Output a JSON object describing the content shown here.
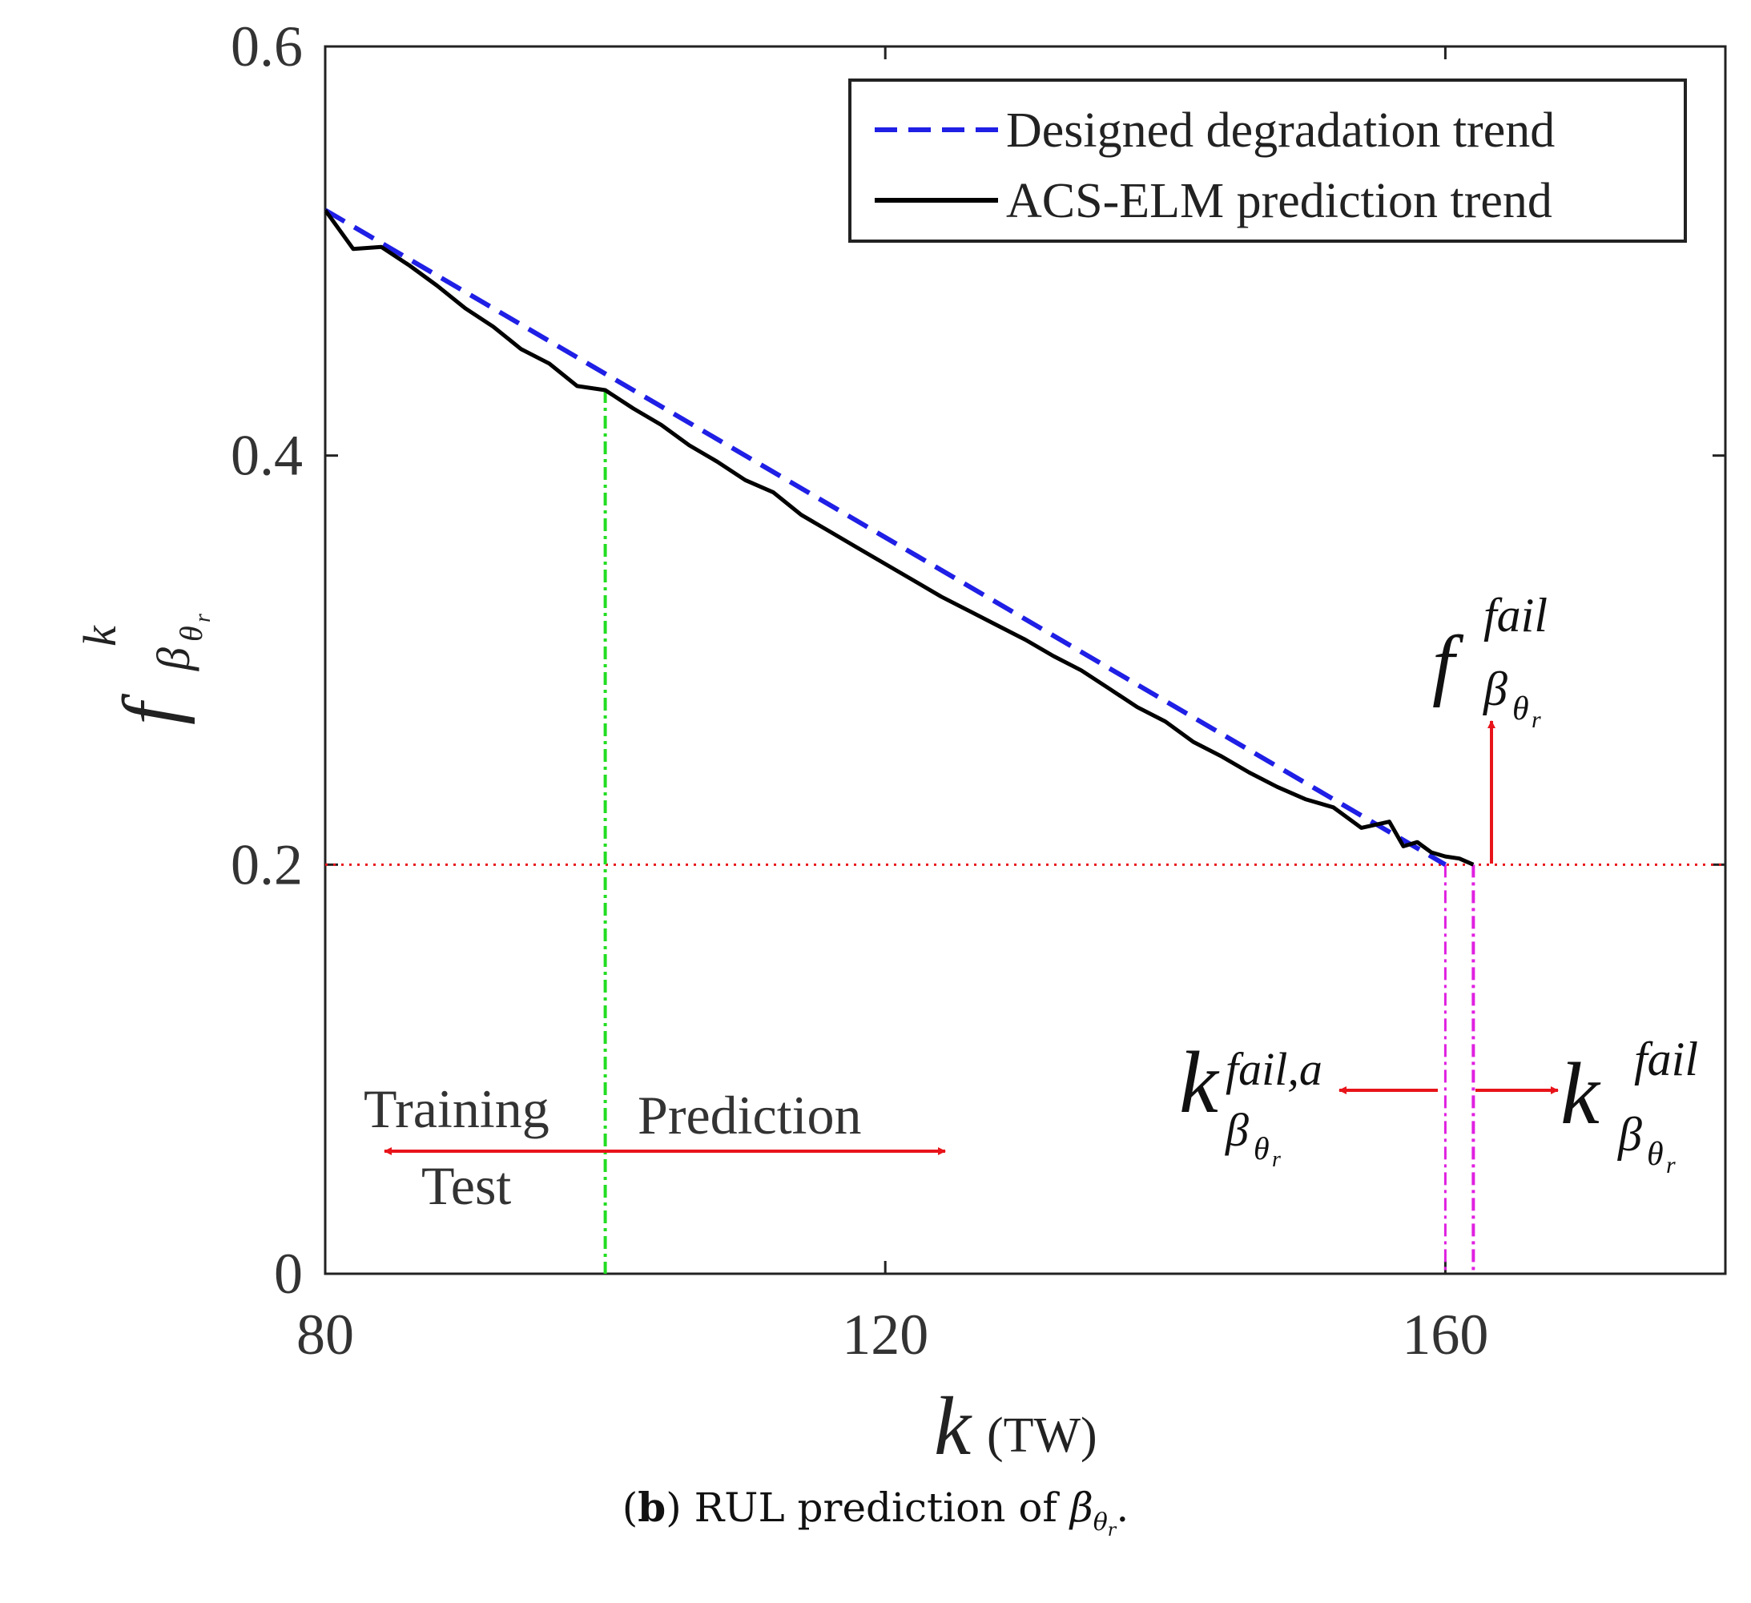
{
  "chart_data": {
    "type": "line",
    "xlabel": "k",
    "xlabel_unit": "(TW)",
    "ylabel": "f",
    "ylabel_superscript": "k",
    "ylabel_subscript": "β",
    "ylabel_subsub": "θ",
    "ylabel_subsubsub": "r",
    "xlim": [
      80,
      180
    ],
    "ylim": [
      0,
      0.6
    ],
    "xticks": [
      80,
      120,
      160
    ],
    "yticks": [
      0,
      0.2,
      0.4,
      0.6
    ],
    "xtick_labels": [
      "80",
      "120",
      "160"
    ],
    "ytick_labels": [
      "0",
      "0.2",
      "0.4",
      "0.6"
    ],
    "legend_position": "top-right",
    "series": [
      {
        "name": "Designed degradation trend",
        "color": "#1f1fe6",
        "style": "dashed",
        "x": [
          80,
          160
        ],
        "y": [
          0.52,
          0.2
        ]
      },
      {
        "name": "ACS-ELM prediction trend",
        "color": "#000000",
        "style": "solid",
        "x": [
          80,
          82,
          84,
          86,
          88,
          90,
          92,
          94,
          96,
          98,
          100,
          102,
          104,
          106,
          108,
          110,
          112,
          114,
          116,
          118,
          120,
          122,
          124,
          126,
          128,
          130,
          132,
          134,
          136,
          138,
          140,
          142,
          144,
          146,
          148,
          150,
          152,
          154,
          156,
          157,
          158,
          159,
          160,
          161,
          162
        ],
        "y": [
          0.52,
          0.501,
          0.502,
          0.493,
          0.483,
          0.472,
          0.463,
          0.452,
          0.445,
          0.434,
          0.432,
          0.423,
          0.415,
          0.405,
          0.397,
          0.388,
          0.382,
          0.371,
          0.363,
          0.355,
          0.347,
          0.339,
          0.331,
          0.324,
          0.317,
          0.31,
          0.302,
          0.295,
          0.286,
          0.277,
          0.27,
          0.26,
          0.253,
          0.245,
          0.238,
          0.232,
          0.228,
          0.218,
          0.221,
          0.209,
          0.211,
          0.206,
          0.204,
          0.203,
          0.2
        ]
      }
    ],
    "threshold": {
      "y": 0.2,
      "color": "#e8141a",
      "style": "dotted"
    },
    "split_line": {
      "x": 100,
      "color": "#22dd22",
      "style": "dash-dot"
    },
    "fail_lines": [
      {
        "x": 160,
        "color": "#e020e0",
        "style": "dash-dot"
      },
      {
        "x": 162,
        "color": "#e020e0",
        "style": "dash-dot"
      }
    ],
    "annotations": {
      "training": "Training",
      "test": "Test",
      "prediction": "Prediction",
      "f_fail_main": "f",
      "f_fail_sup": "fail",
      "k_fail_a_main": "k",
      "k_fail_a_sup": "fail,a",
      "k_fail_main": "k",
      "k_fail_sup": "fail",
      "sub_beta": "β",
      "sub_theta": "θ",
      "sub_r": "r"
    },
    "arrow_color": "#e8141a"
  },
  "caption": {
    "label": "b",
    "text": " RUL prediction of ",
    "symbol": "β",
    "sub": "θ",
    "subsub": "r",
    "end": "."
  }
}
